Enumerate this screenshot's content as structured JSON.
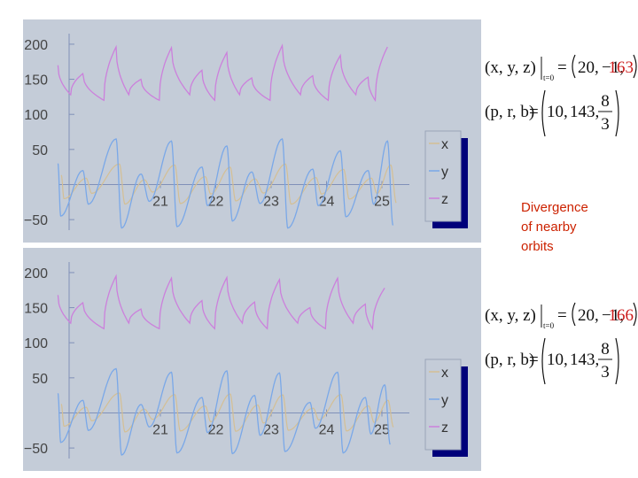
{
  "chart_data": [
    {
      "type": "line",
      "title": "",
      "xlabel": "",
      "ylabel": "",
      "xlim": [
        19.0,
        25.4
      ],
      "ylim": [
        -65,
        210
      ],
      "x_ticks": [
        "21",
        "22",
        "23",
        "24",
        "25"
      ],
      "y_ticks": [
        "200",
        "150",
        "100",
        "50",
        "−50"
      ],
      "legend": [
        "x",
        "y",
        "z"
      ],
      "legend_position": "right",
      "colors": {
        "x": "#d4bf94",
        "y": "#7aa8e8",
        "z": "#cc80dc"
      },
      "peaks": {
        "z": [
          [
            19.15,
            170
          ],
          [
            19.6,
            158
          ],
          [
            20.2,
            196
          ],
          [
            20.65,
            150
          ],
          [
            21.2,
            195
          ],
          [
            21.75,
            163
          ],
          [
            22.2,
            188
          ],
          [
            22.65,
            152
          ],
          [
            23.2,
            198
          ],
          [
            23.75,
            155
          ],
          [
            24.25,
            184
          ],
          [
            24.75,
            153
          ],
          [
            25.1,
            196
          ]
        ],
        "y": [
          [
            19.15,
            30
          ],
          [
            19.6,
            20
          ],
          [
            20.2,
            65
          ],
          [
            20.65,
            15
          ],
          [
            21.2,
            62
          ],
          [
            21.75,
            25
          ],
          [
            22.2,
            55
          ],
          [
            22.65,
            18
          ],
          [
            23.2,
            65
          ],
          [
            23.75,
            22
          ],
          [
            24.25,
            48
          ],
          [
            24.75,
            20
          ],
          [
            25.1,
            62
          ]
        ]
      },
      "troughs": {
        "y": [
          [
            19.2,
            -45
          ],
          [
            19.7,
            -28
          ],
          [
            20.3,
            -62
          ],
          [
            20.8,
            -24
          ],
          [
            21.3,
            -60
          ],
          [
            21.85,
            -30
          ],
          [
            22.3,
            -52
          ],
          [
            22.8,
            -27
          ],
          [
            23.3,
            -62
          ],
          [
            23.85,
            -30
          ],
          [
            24.35,
            -46
          ],
          [
            24.85,
            -28
          ],
          [
            25.2,
            -58
          ]
        ]
      },
      "initial_conditions": {
        "label": "(x, y, z)",
        "subscript": "t=0",
        "values": [
          "20,",
          "−1,",
          "163"
        ]
      },
      "parameters": {
        "label": "(p, r, b)",
        "values": [
          "10,",
          "143,"
        ],
        "b_numerator": "8",
        "b_denominator": "3"
      }
    },
    {
      "type": "line",
      "title": "",
      "xlabel": "",
      "ylabel": "",
      "xlim": [
        19.0,
        25.4
      ],
      "ylim": [
        -65,
        210
      ],
      "x_ticks": [
        "21",
        "22",
        "23",
        "24",
        "25"
      ],
      "y_ticks": [
        "200",
        "150",
        "100",
        "50",
        "−50"
      ],
      "legend": [
        "x",
        "y",
        "z"
      ],
      "legend_position": "right",
      "colors": {
        "x": "#d4bf94",
        "y": "#7aa8e8",
        "z": "#cc80dc"
      },
      "peaks": {
        "z": [
          [
            19.15,
            168
          ],
          [
            19.6,
            157
          ],
          [
            20.2,
            195
          ],
          [
            20.65,
            148
          ],
          [
            21.2,
            192
          ],
          [
            21.75,
            160
          ],
          [
            22.2,
            193
          ],
          [
            22.7,
            158
          ],
          [
            23.15,
            190
          ],
          [
            23.7,
            150
          ],
          [
            24.2,
            192
          ],
          [
            24.7,
            155
          ],
          [
            25.05,
            178
          ]
        ],
        "y": [
          [
            19.15,
            28
          ],
          [
            19.6,
            18
          ],
          [
            20.2,
            63
          ],
          [
            20.65,
            12
          ],
          [
            21.2,
            58
          ],
          [
            21.75,
            22
          ],
          [
            22.2,
            60
          ],
          [
            22.7,
            25
          ],
          [
            23.15,
            57
          ],
          [
            23.7,
            15
          ],
          [
            24.2,
            58
          ],
          [
            24.7,
            22
          ],
          [
            25.05,
            40
          ]
        ]
      },
      "troughs": {
        "y": [
          [
            19.2,
            -42
          ],
          [
            19.7,
            -25
          ],
          [
            20.3,
            -60
          ],
          [
            20.8,
            -20
          ],
          [
            21.3,
            -57
          ],
          [
            21.85,
            -28
          ],
          [
            22.3,
            -58
          ],
          [
            22.8,
            -32
          ],
          [
            23.25,
            -55
          ],
          [
            23.8,
            -22
          ],
          [
            24.3,
            -57
          ],
          [
            24.8,
            -30
          ],
          [
            25.15,
            -45
          ]
        ]
      },
      "initial_conditions": {
        "label": "(x, y, z)",
        "subscript": "t=0",
        "values": [
          "20,",
          "−1,",
          "166"
        ]
      },
      "parameters": {
        "label": "(p, r, b)",
        "values": [
          "10,",
          "143,"
        ],
        "b_numerator": "8",
        "b_denominator": "3"
      }
    }
  ],
  "caption": {
    "lines": [
      "Divergence",
      "of nearby",
      "orbits"
    ]
  }
}
